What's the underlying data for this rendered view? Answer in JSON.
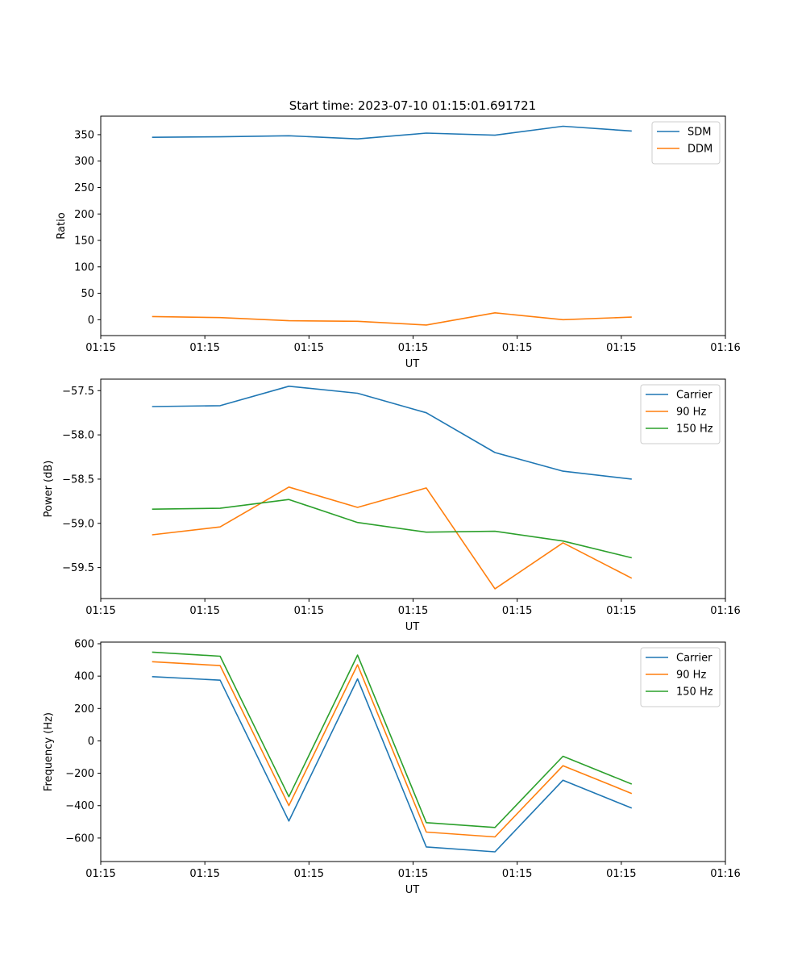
{
  "figure_title": "Start time: 2023-07-10 01:15:01.691721",
  "chart_data": [
    {
      "type": "line",
      "title": "Start time: 2023-07-10 01:15:01.691721",
      "xlabel": "UT",
      "ylabel": "Ratio",
      "xlim": [
        0,
        9
      ],
      "ylim": [
        -30,
        385
      ],
      "x_ticks": [
        0,
        1.5,
        3,
        4.5,
        6,
        7.5,
        9
      ],
      "x_tick_labels": [
        "01:15",
        "01:15",
        "01:15",
        "01:15",
        "01:15",
        "01:15",
        "01:16"
      ],
      "y_ticks": [
        0,
        50,
        100,
        150,
        200,
        250,
        300,
        350
      ],
      "y_tick_labels": [
        "0",
        "50",
        "100",
        "150",
        "200",
        "250",
        "300",
        "350"
      ],
      "x": [
        0.74,
        1.72,
        2.71,
        3.7,
        4.69,
        5.68,
        6.66,
        7.65
      ],
      "legend_position": "upper-right",
      "series": [
        {
          "name": "SDM",
          "color": "#1f77b4",
          "values": [
            345,
            346,
            348,
            342,
            353,
            349,
            366,
            357
          ]
        },
        {
          "name": "DDM",
          "color": "#ff7f0e",
          "values": [
            6,
            4,
            -2,
            -3,
            -10,
            13,
            0,
            5
          ]
        }
      ]
    },
    {
      "type": "line",
      "title": "",
      "xlabel": "UT",
      "ylabel": "Power (dB)",
      "xlim": [
        0,
        9
      ],
      "ylim": [
        -59.85,
        -57.37
      ],
      "x_ticks": [
        0,
        1.5,
        3,
        4.5,
        6,
        7.5,
        9
      ],
      "x_tick_labels": [
        "01:15",
        "01:15",
        "01:15",
        "01:15",
        "01:15",
        "01:15",
        "01:16"
      ],
      "y_ticks": [
        -57.5,
        -58.0,
        -58.5,
        -59.0,
        -59.5
      ],
      "y_tick_labels": [
        "−57.5",
        "−58.0",
        "−58.5",
        "−59.0",
        "−59.5"
      ],
      "x": [
        0.74,
        1.72,
        2.71,
        3.7,
        4.69,
        5.68,
        6.66,
        7.65
      ],
      "legend_position": "upper-right",
      "series": [
        {
          "name": "Carrier",
          "color": "#1f77b4",
          "values": [
            -57.68,
            -57.67,
            -57.45,
            -57.53,
            -57.75,
            -58.2,
            -58.41,
            -58.5
          ]
        },
        {
          "name": "90 Hz",
          "color": "#ff7f0e",
          "values": [
            -59.13,
            -59.04,
            -58.59,
            -58.82,
            -58.6,
            -59.74,
            -59.22,
            -59.62
          ]
        },
        {
          "name": "150 Hz",
          "color": "#2ca02c",
          "values": [
            -58.84,
            -58.83,
            -58.73,
            -58.99,
            -59.1,
            -59.09,
            -59.2,
            -59.39
          ]
        }
      ]
    },
    {
      "type": "line",
      "title": "",
      "xlabel": "UT",
      "ylabel": "Frequency (Hz)",
      "xlim": [
        0,
        9
      ],
      "ylim": [
        -745,
        610
      ],
      "x_ticks": [
        0,
        1.5,
        3,
        4.5,
        6,
        7.5,
        9
      ],
      "x_tick_labels": [
        "01:15",
        "01:15",
        "01:15",
        "01:15",
        "01:15",
        "01:15",
        "01:16"
      ],
      "y_ticks": [
        600,
        400,
        200,
        0,
        -200,
        -400,
        -600
      ],
      "y_tick_labels": [
        "600",
        "400",
        "200",
        "0",
        "−200",
        "−400",
        "−600"
      ],
      "x": [
        0.74,
        1.72,
        2.71,
        3.7,
        4.69,
        5.68,
        6.66,
        7.65
      ],
      "legend_position": "upper-right",
      "series": [
        {
          "name": "Carrier",
          "color": "#1f77b4",
          "values": [
            397,
            375,
            -495,
            383,
            -655,
            -685,
            -243,
            -415
          ]
        },
        {
          "name": "90 Hz",
          "color": "#ff7f0e",
          "values": [
            489,
            465,
            -400,
            470,
            -563,
            -593,
            -153,
            -325
          ]
        },
        {
          "name": "150 Hz",
          "color": "#2ca02c",
          "values": [
            548,
            523,
            -345,
            530,
            -505,
            -535,
            -95,
            -267
          ]
        }
      ]
    }
  ]
}
